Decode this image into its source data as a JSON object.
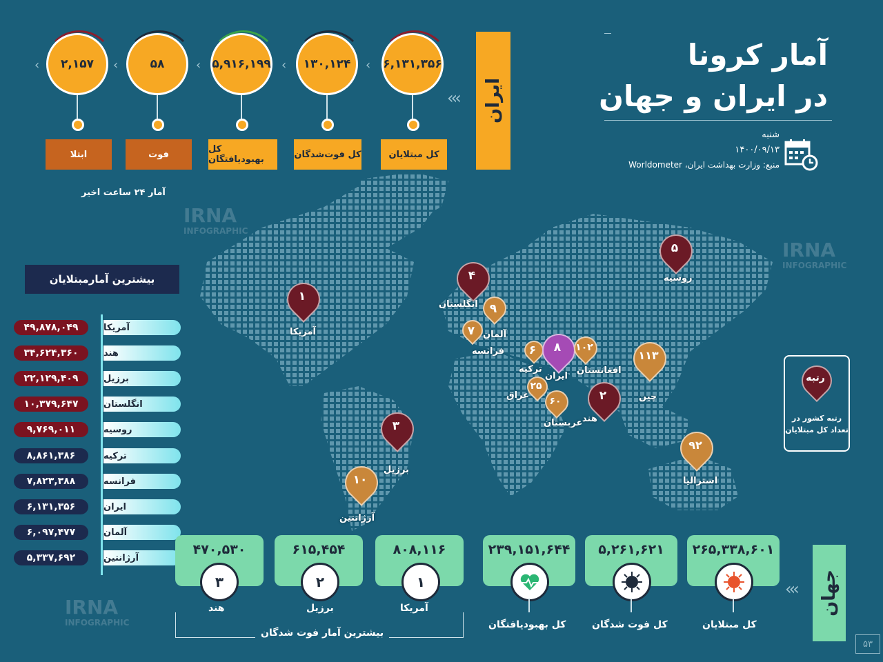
{
  "title": {
    "line1": "آمار کرونا",
    "line2": "در ایران و جهان"
  },
  "meta": {
    "day": "شنبه",
    "date": "۱۴۰۰/۰۹/۱۳",
    "source": "منبع: وزارت بهداشت ایران، Worldometer"
  },
  "iran": {
    "label": "ایران",
    "stats": [
      {
        "value": "۶,۱۳۱,۳۵۶",
        "label": "کل مبتلایان"
      },
      {
        "value": "۱۳۰,۱۲۴",
        "label": "کل فوت‌شدگان"
      },
      {
        "value": "۵,۹۱۶,۱۹۹",
        "label": "کل بهبودیافتگان"
      },
      {
        "value": "۵۸",
        "label": "فوت"
      },
      {
        "value": "۲,۱۵۷",
        "label": "ابتلا"
      }
    ],
    "last24": "آمار ۲۴ ساعت اخیر"
  },
  "top_list": {
    "heading": "بیشترین آمارمبتلایان",
    "items": [
      {
        "country": "آمریکا",
        "value": "۴۹,۸۷۸,۰۴۹"
      },
      {
        "country": "هند",
        "value": "۳۴,۶۲۴,۳۶۰"
      },
      {
        "country": "برزیل",
        "value": "۲۲,۱۲۹,۴۰۹"
      },
      {
        "country": "انگلستان",
        "value": "۱۰,۳۷۹,۶۴۷"
      },
      {
        "country": "روسیه",
        "value": "۹,۷۶۹,۰۱۱"
      },
      {
        "country": "ترکیه",
        "value": "۸,۸۶۱,۳۸۶"
      },
      {
        "country": "فرانسه",
        "value": "۷,۸۲۳,۳۸۸"
      },
      {
        "country": "ایران",
        "value": "۶,۱۳۱,۳۵۶"
      },
      {
        "country": "آلمان",
        "value": "۶,۰۹۷,۴۷۷"
      },
      {
        "country": "آرژانتین",
        "value": "۵,۳۳۷,۶۹۲"
      }
    ]
  },
  "map_pins": [
    {
      "rank": "۱",
      "country": "آمریکا"
    },
    {
      "rank": "۲",
      "country": "هند"
    },
    {
      "rank": "۳",
      "country": "برزیل"
    },
    {
      "rank": "۴",
      "country": "انگلستان"
    },
    {
      "rank": "۵",
      "country": "روسیه"
    },
    {
      "rank": "۶",
      "country": "ترکیه"
    },
    {
      "rank": "۷",
      "country": "فرانسه"
    },
    {
      "rank": "۸",
      "country": "ایران"
    },
    {
      "rank": "۹",
      "country": "آلمان"
    },
    {
      "rank": "۱۰",
      "country": "آرژانتین"
    },
    {
      "rank": "۲۵",
      "country": "عراق"
    },
    {
      "rank": "۶۰",
      "country": "عربستان"
    },
    {
      "rank": "۱۰۲",
      "country": "افغانستان"
    },
    {
      "rank": "۱۱۳",
      "country": "چین"
    },
    {
      "rank": "۹۲",
      "country": "استرالیا"
    }
  ],
  "legend": {
    "title": "رتبه",
    "text": "رتبه کشور در تعداد کل مبتلایان"
  },
  "world": {
    "label": "جهان",
    "totals": [
      {
        "value": "۲۶۵,۳۳۸,۶۰۱",
        "label": "کل مبتلایان",
        "icon": "virus-icon"
      },
      {
        "value": "۵,۲۶۱,۶۲۱",
        "label": "کل فوت شدگان",
        "icon": "virus-dark-icon"
      },
      {
        "value": "۲۳۹,۱۵۱,۶۴۴",
        "label": "کل بهبودیافتگان",
        "icon": "heart-pulse-icon"
      }
    ],
    "deaths_heading": "بیشترین آمار فوت شدگان",
    "deaths_top": [
      {
        "rank": "۱",
        "value": "۸۰۸,۱۱۶",
        "country": "آمریکا"
      },
      {
        "rank": "۲",
        "value": "۶۱۵,۴۵۴",
        "country": "برزیل"
      },
      {
        "rank": "۳",
        "value": "۴۷۰,۵۳۰",
        "country": "هند"
      }
    ]
  },
  "watermark": {
    "brand": "IRNA",
    "sub": "INFOGRAPHIC"
  },
  "page": "۵۳",
  "colors": {
    "background": "#1a5f7a",
    "orange": "#f7a823",
    "brown": "#c6641f",
    "green": "#7cd9ab",
    "red": "#7b1320",
    "navy": "#1c2a4e"
  }
}
